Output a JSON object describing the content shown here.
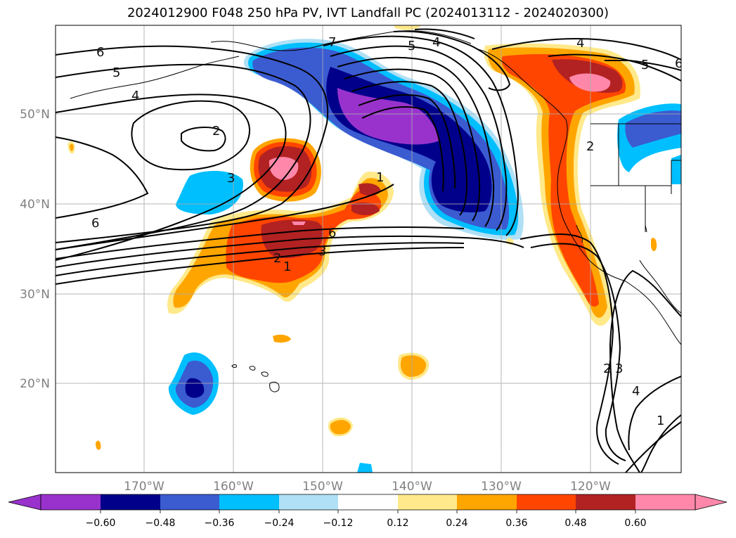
{
  "title": "2024012900 F048 250 hPa PV, IVT Landfall PC (2024013112 - 2024020300)",
  "lat_labels": [
    "50°N",
    "40°N",
    "30°N",
    "20°N"
  ],
  "lon_labels": [
    "170°W",
    "160°W",
    "150°W",
    "140°W",
    "130°W",
    "120°W"
  ],
  "colorbar": {
    "colors": [
      "#9932cc",
      "#00008b",
      "#3b5bd1",
      "#00bfff",
      "#b0e0f5",
      "#ffffff",
      "#ffe98a",
      "#ffa500",
      "#ff4500",
      "#b22222",
      "#ff88aa"
    ],
    "tick_labels": [
      "−0.60",
      "−0.48",
      "−0.36",
      "−0.24",
      "−0.12",
      "0.12",
      "0.24",
      "0.36",
      "0.48",
      "0.60"
    ]
  },
  "contour_labels": [
    "6",
    "5",
    "4",
    "2",
    "3",
    "7",
    "5",
    "4",
    "6",
    "3",
    "2",
    "1",
    "1",
    "6",
    "4",
    "5",
    "6",
    "2",
    "3",
    "4",
    "1",
    "2"
  ]
}
